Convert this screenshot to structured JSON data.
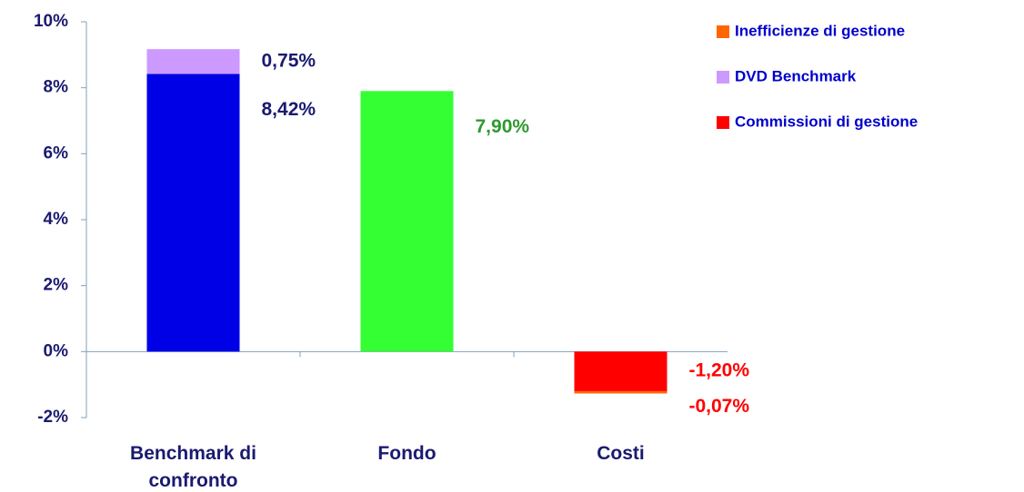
{
  "chart_data": {
    "type": "stacked_bar",
    "categories": [
      "Benchmark di confronto",
      "Fondo",
      "Costi"
    ],
    "series": [
      {
        "color": "#0000e6",
        "label_color": "#1a1a70",
        "values": [
          8.42,
          null,
          null
        ],
        "value_labels": [
          "8,42%",
          null,
          null
        ]
      },
      {
        "name": "DVD Benchmark",
        "color": "#cc99ff",
        "label_color": "#1a1a70",
        "values": [
          0.75,
          null,
          null
        ],
        "value_labels": [
          "0,75%",
          null,
          null
        ]
      },
      {
        "color": "#33ff33",
        "label_color": "#2e9a2e",
        "values": [
          null,
          7.9,
          null
        ],
        "value_labels": [
          null,
          "7,90%",
          null
        ]
      },
      {
        "name": "Commissioni di gestione",
        "color": "#ff0000",
        "label_color": "#ff0000",
        "values": [
          null,
          null,
          -1.2
        ],
        "value_labels": [
          null,
          null,
          "-1,20%"
        ]
      },
      {
        "name": "Inefficienze di gestione",
        "color": "#ff6600",
        "label_color": "#ff0000",
        "values": [
          null,
          null,
          -0.07
        ],
        "value_labels": [
          null,
          null,
          "-0,07%"
        ]
      }
    ],
    "legend_order": [
      4,
      1,
      3
    ],
    "ylim": [
      -2,
      10
    ],
    "yticks": [
      {
        "value": -2,
        "label": "-2%"
      },
      {
        "value": 0,
        "label": "0%"
      },
      {
        "value": 2,
        "label": "2%"
      },
      {
        "value": 4,
        "label": "4%"
      },
      {
        "value": 6,
        "label": "6%"
      },
      {
        "value": 8,
        "label": "8%"
      },
      {
        "value": 10,
        "label": "10%"
      }
    ]
  }
}
